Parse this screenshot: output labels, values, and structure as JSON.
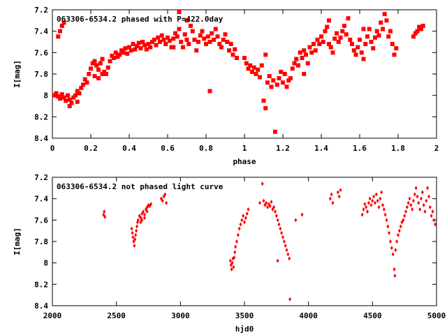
{
  "chart_data": [
    {
      "type": "scatter",
      "title": "063306-6534.2 phased with P=422.0day",
      "xlabel": "phase",
      "ylabel": "I[mag]",
      "xlim": [
        0,
        2
      ],
      "ylim": [
        7.2,
        8.4
      ],
      "y_inverted": true,
      "marker": "filled square",
      "color": "#ff0000",
      "grid": false,
      "x_ticks": [
        "0",
        "0.2",
        "0.4",
        "0.6",
        "0.8",
        "1",
        "1.2",
        "1.4",
        "1.6",
        "1.8",
        "2"
      ],
      "y_ticks": [
        "7.2",
        "7.4",
        "7.6",
        "7.8",
        "8",
        "8.2",
        "8.4"
      ],
      "points": [
        [
          0.01,
          8.0
        ],
        [
          0.02,
          7.98
        ],
        [
          0.03,
          8.01
        ],
        [
          0.04,
          8.03
        ],
        [
          0.05,
          7.99
        ],
        [
          0.04,
          7.4
        ],
        [
          0.05,
          7.35
        ],
        [
          0.06,
          7.32
        ],
        [
          0.03,
          7.45
        ],
        [
          0.06,
          8.02
        ],
        [
          0.07,
          8.05
        ],
        [
          0.08,
          8.0
        ],
        [
          0.09,
          8.04
        ],
        [
          0.1,
          8.07
        ],
        [
          0.11,
          8.02
        ],
        [
          0.12,
          8.0
        ],
        [
          0.13,
          7.96
        ],
        [
          0.14,
          7.98
        ],
        [
          0.15,
          7.93
        ],
        [
          0.16,
          7.9
        ],
        [
          0.17,
          7.85
        ],
        [
          0.18,
          7.88
        ],
        [
          0.19,
          7.8
        ],
        [
          0.2,
          7.75
        ],
        [
          0.21,
          7.7
        ],
        [
          0.22,
          7.68
        ],
        [
          0.23,
          7.72
        ],
        [
          0.24,
          7.76
        ],
        [
          0.25,
          7.7
        ],
        [
          0.26,
          7.66
        ],
        [
          0.27,
          7.78
        ],
        [
          0.28,
          7.8
        ],
        [
          0.29,
          7.74
        ],
        [
          0.3,
          7.68
        ],
        [
          0.31,
          7.63
        ],
        [
          0.32,
          7.65
        ],
        [
          0.33,
          7.6
        ],
        [
          0.34,
          7.64
        ],
        [
          0.35,
          7.62
        ],
        [
          0.36,
          7.58
        ],
        [
          0.37,
          7.6
        ],
        [
          0.38,
          7.56
        ],
        [
          0.39,
          7.61
        ],
        [
          0.4,
          7.55
        ],
        [
          0.41,
          7.58
        ],
        [
          0.42,
          7.52
        ],
        [
          0.43,
          7.57
        ],
        [
          0.44,
          7.54
        ],
        [
          0.45,
          7.51
        ],
        [
          0.46,
          7.56
        ],
        [
          0.47,
          7.5
        ],
        [
          0.48,
          7.53
        ],
        [
          0.49,
          7.57
        ],
        [
          0.5,
          7.52
        ],
        [
          0.51,
          7.55
        ],
        [
          0.52,
          7.5
        ],
        [
          0.53,
          7.48
        ],
        [
          0.54,
          7.53
        ],
        [
          0.55,
          7.46
        ],
        [
          0.56,
          7.5
        ],
        [
          0.57,
          7.44
        ],
        [
          0.58,
          7.48
        ],
        [
          0.59,
          7.52
        ],
        [
          0.6,
          7.46
        ],
        [
          0.61,
          7.49
        ],
        [
          0.62,
          7.55
        ],
        [
          0.63,
          7.47
        ],
        [
          0.64,
          7.42
        ],
        [
          0.65,
          7.45
        ],
        [
          0.66,
          7.38
        ],
        [
          0.67,
          7.5
        ],
        [
          0.68,
          7.55
        ],
        [
          0.69,
          7.43
        ],
        [
          0.7,
          7.48
        ],
        [
          0.71,
          7.52
        ],
        [
          0.72,
          7.35
        ],
        [
          0.73,
          7.4
        ],
        [
          0.74,
          7.48
        ],
        [
          0.75,
          7.58
        ],
        [
          0.76,
          7.5
        ],
        [
          0.77,
          7.44
        ],
        [
          0.78,
          7.4
        ],
        [
          0.79,
          7.47
        ],
        [
          0.8,
          7.52
        ],
        [
          0.81,
          7.45
        ],
        [
          0.82,
          7.5
        ],
        [
          0.82,
          7.96
        ],
        [
          0.83,
          7.42
        ],
        [
          0.84,
          7.48
        ],
        [
          0.85,
          7.38
        ],
        [
          0.86,
          7.45
        ],
        [
          0.87,
          7.52
        ],
        [
          0.88,
          7.55
        ],
        [
          0.89,
          7.48
        ],
        [
          0.9,
          7.43
        ],
        [
          0.91,
          7.5
        ],
        [
          0.92,
          7.58
        ],
        [
          0.93,
          7.52
        ],
        [
          0.94,
          7.62
        ],
        [
          0.95,
          7.57
        ],
        [
          0.96,
          7.65
        ],
        [
          0.66,
          7.22
        ],
        [
          0.7,
          7.3
        ],
        [
          0.63,
          7.55
        ],
        [
          0.22,
          7.82
        ],
        [
          0.24,
          7.84
        ],
        [
          0.26,
          7.8
        ],
        [
          0.13,
          8.06
        ],
        [
          0.09,
          8.1
        ],
        [
          1.0,
          7.65
        ],
        [
          1.01,
          7.7
        ],
        [
          1.02,
          7.75
        ],
        [
          1.03,
          7.72
        ],
        [
          1.04,
          7.78
        ],
        [
          1.05,
          7.74
        ],
        [
          1.06,
          7.8
        ],
        [
          1.07,
          7.76
        ],
        [
          1.08,
          7.83
        ],
        [
          1.09,
          7.72
        ],
        [
          1.1,
          8.05
        ],
        [
          1.11,
          8.12
        ],
        [
          1.12,
          7.88
        ],
        [
          1.13,
          7.82
        ],
        [
          1.14,
          7.92
        ],
        [
          1.15,
          7.86
        ],
        [
          1.16,
          8.34
        ],
        [
          1.17,
          7.9
        ],
        [
          1.18,
          7.84
        ],
        [
          1.19,
          7.78
        ],
        [
          1.2,
          7.88
        ],
        [
          1.21,
          7.8
        ],
        [
          1.22,
          7.92
        ],
        [
          1.23,
          7.86
        ],
        [
          1.24,
          7.84
        ],
        [
          1.25,
          7.75
        ],
        [
          1.26,
          7.7
        ],
        [
          1.27,
          7.66
        ],
        [
          1.28,
          7.72
        ],
        [
          1.29,
          7.6
        ],
        [
          1.3,
          7.65
        ],
        [
          1.31,
          7.58
        ],
        [
          1.32,
          7.62
        ],
        [
          1.33,
          7.7
        ],
        [
          1.34,
          7.55
        ],
        [
          1.35,
          7.6
        ],
        [
          1.36,
          7.52
        ],
        [
          1.37,
          7.58
        ],
        [
          1.38,
          7.48
        ],
        [
          1.39,
          7.52
        ],
        [
          1.4,
          7.45
        ],
        [
          1.41,
          7.5
        ],
        [
          1.42,
          7.4
        ],
        [
          1.43,
          7.36
        ],
        [
          1.44,
          7.52
        ],
        [
          1.45,
          7.55
        ],
        [
          1.46,
          7.6
        ],
        [
          1.47,
          7.47
        ],
        [
          1.48,
          7.42
        ],
        [
          1.49,
          7.5
        ],
        [
          1.5,
          7.46
        ],
        [
          1.51,
          7.4
        ],
        [
          1.52,
          7.35
        ],
        [
          1.53,
          7.43
        ],
        [
          1.54,
          7.28
        ],
        [
          1.55,
          7.48
        ],
        [
          1.56,
          7.52
        ],
        [
          1.57,
          7.58
        ],
        [
          1.58,
          7.62
        ],
        [
          1.59,
          7.55
        ],
        [
          1.6,
          7.48
        ],
        [
          1.61,
          7.6
        ],
        [
          1.62,
          7.66
        ],
        [
          1.63,
          7.52
        ],
        [
          1.64,
          7.45
        ],
        [
          1.65,
          7.38
        ],
        [
          1.66,
          7.5
        ],
        [
          1.67,
          7.56
        ],
        [
          1.68,
          7.46
        ],
        [
          1.69,
          7.4
        ],
        [
          1.7,
          7.44
        ],
        [
          1.71,
          7.32
        ],
        [
          1.72,
          7.38
        ],
        [
          1.73,
          7.24
        ],
        [
          1.74,
          7.3
        ],
        [
          1.75,
          7.45
        ],
        [
          1.76,
          7.4
        ],
        [
          1.77,
          7.52
        ],
        [
          1.78,
          7.62
        ],
        [
          1.79,
          7.56
        ],
        [
          1.88,
          7.45
        ],
        [
          1.89,
          7.42
        ],
        [
          1.9,
          7.4
        ],
        [
          1.91,
          7.36
        ],
        [
          1.92,
          7.38
        ],
        [
          1.93,
          7.35
        ],
        [
          1.11,
          7.62
        ],
        [
          1.31,
          7.8
        ],
        [
          1.44,
          7.3
        ],
        [
          1.62,
          7.38
        ]
      ]
    },
    {
      "type": "scatter",
      "title": "063306-6534.2 not phased light curve",
      "xlabel": "hjd0",
      "ylabel": "I[mag]",
      "xlim": [
        2000,
        5000
      ],
      "ylim": [
        7.2,
        8.4
      ],
      "y_inverted": true,
      "marker": "small diamond",
      "color": "#ff0000",
      "grid": false,
      "x_ticks": [
        "2000",
        "2500",
        "3000",
        "3500",
        "4000",
        "4500",
        "5000"
      ],
      "y_ticks": [
        "7.2",
        "7.4",
        "7.6",
        "7.8",
        "8",
        "8.2",
        "8.4"
      ],
      "points": [
        [
          2400,
          7.55
        ],
        [
          2405,
          7.52
        ],
        [
          2410,
          7.57
        ],
        [
          2620,
          7.68
        ],
        [
          2625,
          7.72
        ],
        [
          2630,
          7.76
        ],
        [
          2635,
          7.8
        ],
        [
          2640,
          7.84
        ],
        [
          2645,
          7.78
        ],
        [
          2650,
          7.74
        ],
        [
          2655,
          7.7
        ],
        [
          2660,
          7.66
        ],
        [
          2665,
          7.62
        ],
        [
          2670,
          7.6
        ],
        [
          2680,
          7.56
        ],
        [
          2690,
          7.58
        ],
        [
          2700,
          7.54
        ],
        [
          2710,
          7.52
        ],
        [
          2720,
          7.55
        ],
        [
          2730,
          7.5
        ],
        [
          2740,
          7.48
        ],
        [
          2750,
          7.46
        ],
        [
          2760,
          7.47
        ],
        [
          2770,
          7.45
        ],
        [
          2690,
          7.62
        ],
        [
          2700,
          7.6
        ],
        [
          2720,
          7.58
        ],
        [
          2740,
          7.52
        ],
        [
          2850,
          7.4
        ],
        [
          2860,
          7.42
        ],
        [
          2870,
          7.38
        ],
        [
          2880,
          7.36
        ],
        [
          2890,
          7.44
        ],
        [
          3390,
          7.98
        ],
        [
          3395,
          8.02
        ],
        [
          3400,
          8.06
        ],
        [
          3405,
          8.0
        ],
        [
          3410,
          7.96
        ],
        [
          3415,
          8.04
        ],
        [
          3420,
          7.95
        ],
        [
          3425,
          7.9
        ],
        [
          3430,
          7.85
        ],
        [
          3440,
          7.8
        ],
        [
          3450,
          7.74
        ],
        [
          3460,
          7.68
        ],
        [
          3470,
          7.64
        ],
        [
          3480,
          7.6
        ],
        [
          3490,
          7.56
        ],
        [
          3500,
          7.62
        ],
        [
          3510,
          7.58
        ],
        [
          3520,
          7.54
        ],
        [
          3530,
          7.5
        ],
        [
          3620,
          7.44
        ],
        [
          3640,
          7.26
        ],
        [
          3650,
          7.42
        ],
        [
          3660,
          7.46
        ],
        [
          3670,
          7.44
        ],
        [
          3680,
          7.48
        ],
        [
          3690,
          7.45
        ],
        [
          3700,
          7.47
        ],
        [
          3710,
          7.43
        ],
        [
          3720,
          7.5
        ],
        [
          3730,
          7.48
        ],
        [
          3740,
          7.52
        ],
        [
          3750,
          7.56
        ],
        [
          3760,
          7.6
        ],
        [
          3770,
          7.64
        ],
        [
          3780,
          7.68
        ],
        [
          3790,
          7.72
        ],
        [
          3800,
          7.76
        ],
        [
          3810,
          7.8
        ],
        [
          3820,
          7.84
        ],
        [
          3830,
          7.88
        ],
        [
          3840,
          7.92
        ],
        [
          3850,
          7.96
        ],
        [
          3855,
          8.34
        ],
        [
          3760,
          7.98
        ],
        [
          3900,
          7.6
        ],
        [
          3950,
          7.55
        ],
        [
          4170,
          7.4
        ],
        [
          4180,
          7.36
        ],
        [
          4190,
          7.44
        ],
        [
          4230,
          7.34
        ],
        [
          4240,
          7.38
        ],
        [
          4250,
          7.32
        ],
        [
          4420,
          7.55
        ],
        [
          4430,
          7.5
        ],
        [
          4440,
          7.45
        ],
        [
          4450,
          7.48
        ],
        [
          4460,
          7.52
        ],
        [
          4470,
          7.44
        ],
        [
          4480,
          7.4
        ],
        [
          4490,
          7.46
        ],
        [
          4500,
          7.42
        ],
        [
          4510,
          7.38
        ],
        [
          4520,
          7.44
        ],
        [
          4530,
          7.36
        ],
        [
          4540,
          7.42
        ],
        [
          4550,
          7.48
        ],
        [
          4560,
          7.4
        ],
        [
          4570,
          7.34
        ],
        [
          4580,
          7.46
        ],
        [
          4590,
          7.5
        ],
        [
          4600,
          7.55
        ],
        [
          4610,
          7.6
        ],
        [
          4620,
          7.66
        ],
        [
          4630,
          7.72
        ],
        [
          4640,
          7.8
        ],
        [
          4650,
          7.86
        ],
        [
          4660,
          7.92
        ],
        [
          4670,
          8.06
        ],
        [
          4675,
          8.12
        ],
        [
          4680,
          7.88
        ],
        [
          4690,
          7.8
        ],
        [
          4700,
          7.74
        ],
        [
          4710,
          7.7
        ],
        [
          4720,
          7.66
        ],
        [
          4730,
          7.62
        ],
        [
          4740,
          7.6
        ],
        [
          4750,
          7.56
        ],
        [
          4760,
          7.52
        ],
        [
          4770,
          7.48
        ],
        [
          4780,
          7.44
        ],
        [
          4790,
          7.4
        ],
        [
          4800,
          7.46
        ],
        [
          4810,
          7.5
        ],
        [
          4820,
          7.42
        ],
        [
          4830,
          7.36
        ],
        [
          4840,
          7.3
        ],
        [
          4850,
          7.38
        ],
        [
          4860,
          7.44
        ],
        [
          4870,
          7.5
        ],
        [
          4880,
          7.4
        ],
        [
          4890,
          7.34
        ],
        [
          4900,
          7.46
        ],
        [
          4910,
          7.52
        ],
        [
          4920,
          7.42
        ],
        [
          4930,
          7.3
        ],
        [
          4940,
          7.38
        ],
        [
          4950,
          7.48
        ],
        [
          4960,
          7.56
        ],
        [
          4970,
          7.52
        ],
        [
          4980,
          7.6
        ],
        [
          4990,
          7.64
        ]
      ]
    }
  ]
}
